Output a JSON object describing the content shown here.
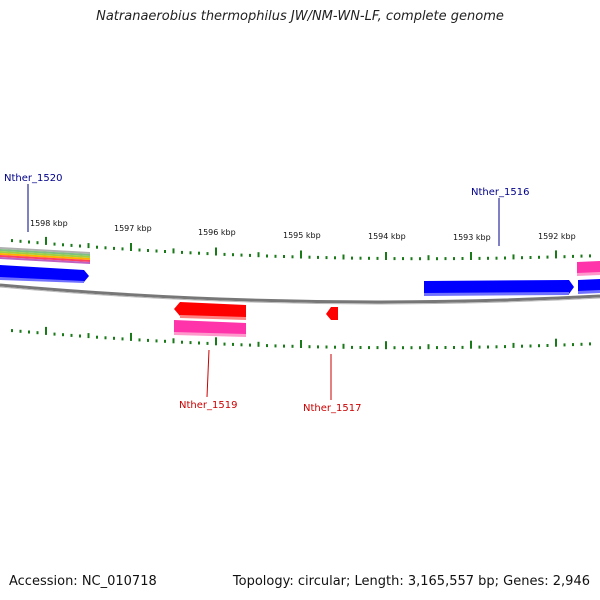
{
  "title": "Natranaerobius thermophilus JW/NM-WN-LF, complete genome",
  "footer": {
    "accession": "Accession: NC_010718",
    "summary": "Topology: circular; Length: 3,165,557 bp; Genes: 2,946"
  },
  "colors": {
    "forward_gene": "#0000ff",
    "reverse_gene": "#ff0000",
    "rna": "#ff33aa",
    "tick": "#1a7a1a",
    "backbone": "#777777",
    "forward_label": "#00008b",
    "reverse_label": "#cc0000"
  },
  "kbp_labels": [
    "1598 kbp",
    "1597 kbp",
    "1596 kbp",
    "1595 kbp",
    "1594 kbp",
    "1593 kbp",
    "1592 kbp"
  ],
  "gene_labels": {
    "nther_1520": "Nther_1520",
    "nther_1516": "Nther_1516",
    "nther_1519": "Nther_1519",
    "nther_1517": "Nther_1517"
  }
}
